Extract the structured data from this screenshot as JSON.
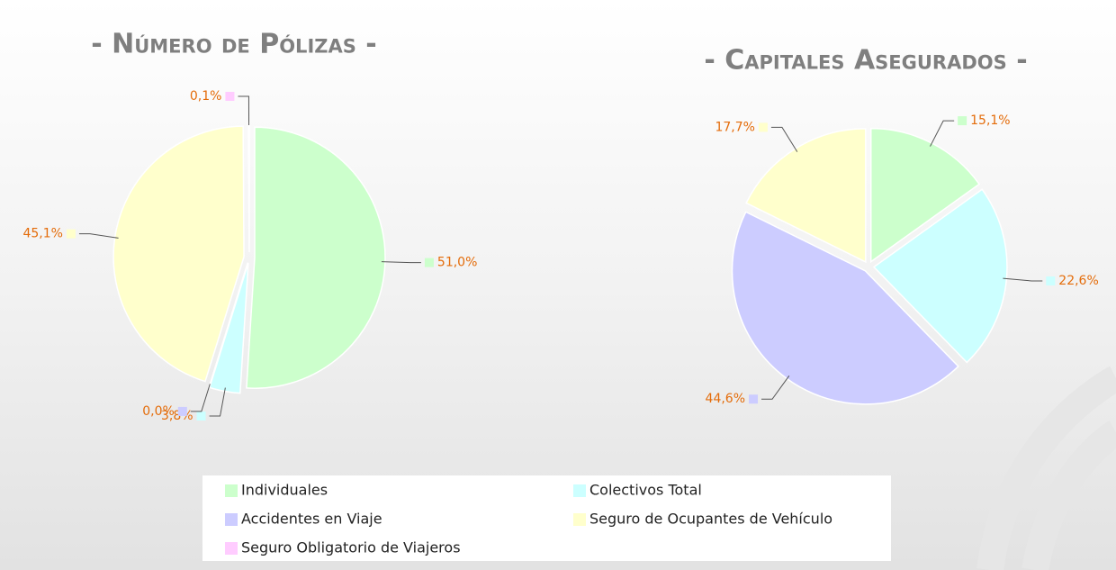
{
  "chart_data": [
    {
      "type": "pie",
      "title": "- Número de Pólizas -",
      "categories": [
        "Individuales",
        "Colectivos Total",
        "Accidentes en Viaje",
        "Seguro de Ocupantes de Vehículo",
        "Seguro Obligatorio de Viajeros"
      ],
      "values": [
        51.0,
        3.8,
        0.0,
        45.1,
        0.1
      ],
      "value_labels": [
        "51,0%",
        "3,8%",
        "0,0%",
        "45,1%",
        "0,1%"
      ],
      "colors": [
        "#ccffcc",
        "#ccffff",
        "#ccccff",
        "#ffffcc",
        "#ffccff"
      ]
    },
    {
      "type": "pie",
      "title": "- Capitales Asegurados -",
      "categories": [
        "Individuales",
        "Colectivos Total",
        "Accidentes en Viaje",
        "Seguro de Ocupantes de Vehículo"
      ],
      "values": [
        15.1,
        22.6,
        44.6,
        17.7
      ],
      "value_labels": [
        "15,1%",
        "22,6%",
        "44,6%",
        "17,7%"
      ],
      "colors": [
        "#ccffcc",
        "#ccffff",
        "#ccccff",
        "#ffffcc"
      ]
    }
  ]
}
